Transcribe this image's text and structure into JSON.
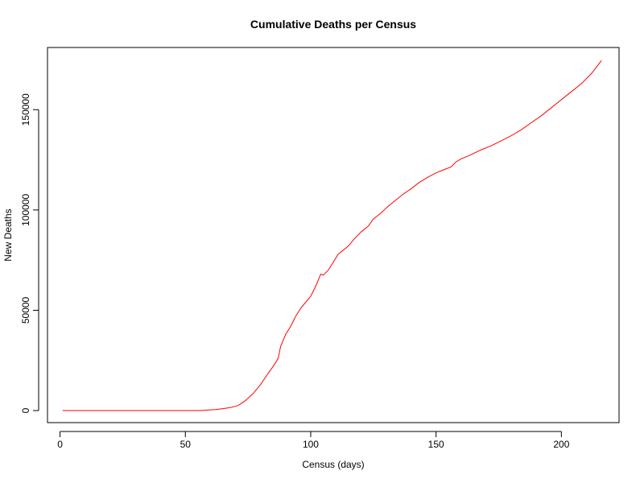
{
  "chart_data": {
    "type": "line",
    "title": "Cumulative Deaths per Census",
    "xlabel": "Census (days)",
    "ylabel": "New Deaths",
    "xlim": [
      -5,
      223
    ],
    "ylim": [
      -6000,
      181000
    ],
    "xticks": [
      0,
      50,
      100,
      150,
      200
    ],
    "yticks": [
      0,
      50000,
      100000,
      150000
    ],
    "grid": false,
    "line_color": "#ff0000",
    "series": [
      {
        "x": [
          1,
          30,
          56,
          62,
          65,
          68,
          71,
          74,
          77,
          80,
          83,
          85,
          87,
          88,
          89,
          90,
          92,
          94,
          96,
          98,
          100,
          102,
          104,
          105,
          107,
          109,
          111,
          113,
          115,
          117,
          120,
          123,
          125,
          128,
          131,
          134,
          137,
          140,
          143,
          147,
          150,
          153,
          156,
          158,
          160,
          163,
          168,
          172,
          176,
          180,
          184,
          188,
          192,
          196,
          200,
          204,
          208,
          212,
          216
        ],
        "y": [
          0,
          0,
          0,
          500,
          1000,
          1500,
          2500,
          5000,
          8500,
          13000,
          18500,
          22000,
          26000,
          32000,
          35000,
          38000,
          42000,
          47000,
          51000,
          54000,
          57000,
          62000,
          68000,
          67500,
          70000,
          74000,
          78000,
          80000,
          82000,
          85000,
          89000,
          92000,
          95500,
          98500,
          102000,
          105000,
          108000,
          110500,
          113500,
          116500,
          118500,
          120000,
          121500,
          124000,
          125500,
          127000,
          130000,
          132000,
          134500,
          137000,
          140000,
          143500,
          147000,
          151000,
          155000,
          159000,
          163000,
          168000,
          174500
        ]
      }
    ]
  }
}
